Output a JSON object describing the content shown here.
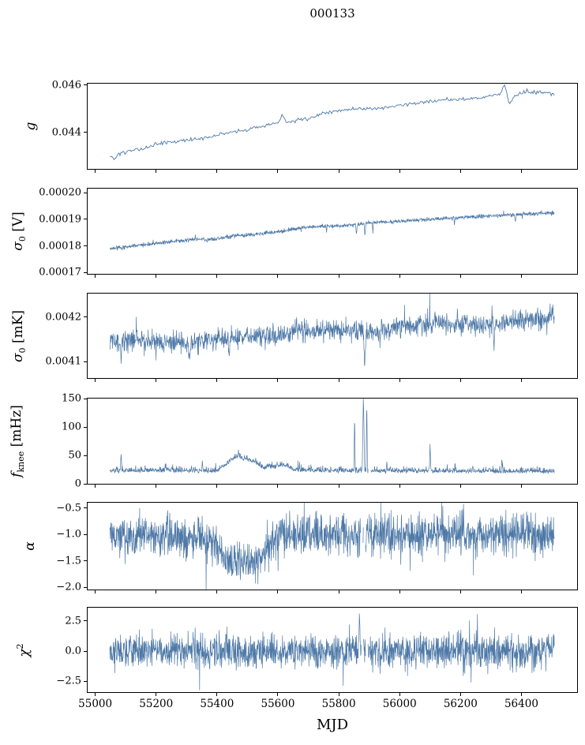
{
  "title": "000133",
  "xlabel": "MJD",
  "line_color": "#4e79a7",
  "spine_color": "#000000",
  "chart_data": {
    "type": "line",
    "title": "000133",
    "xlabel": "MJD",
    "legend": "none",
    "grid": false,
    "xlim": [
      54975,
      56583
    ],
    "xticks": [
      55000,
      55200,
      55400,
      55600,
      55800,
      56000,
      56200,
      56400
    ],
    "xtick_labels": [
      "55000",
      "55200",
      "55400",
      "55600",
      "55800",
      "56000",
      "56200",
      "56400"
    ],
    "x_data_range": [
      55048,
      56508
    ],
    "panels": [
      {
        "name": "g",
        "ylabel": "g",
        "ylabel_parts": {
          "base": "g",
          "sub": "",
          "sup": "",
          "suffix": ""
        },
        "ylim": [
          0.04245,
          0.04605
        ],
        "yticks": [
          0.046,
          0.044
        ],
        "ytick_labels": [
          "0.046",
          "0.044"
        ],
        "series": {
          "n": 440,
          "seed": 7,
          "noise_amp": 6.5e-05,
          "trend": [
            [
              55048,
              0.043
            ],
            [
              55065,
              0.04285
            ],
            [
              55080,
              0.0431
            ],
            [
              55120,
              0.0432
            ],
            [
              55160,
              0.0433
            ],
            [
              55200,
              0.0435
            ],
            [
              55260,
              0.0436
            ],
            [
              55320,
              0.0437
            ],
            [
              55380,
              0.0438
            ],
            [
              55440,
              0.044
            ],
            [
              55500,
              0.0441
            ],
            [
              55560,
              0.0443
            ],
            [
              55600,
              0.0444
            ],
            [
              55615,
              0.0447
            ],
            [
              55630,
              0.0444
            ],
            [
              55660,
              0.0445
            ],
            [
              55700,
              0.0446
            ],
            [
              55750,
              0.0448
            ],
            [
              55800,
              0.0449
            ],
            [
              55860,
              0.045
            ],
            [
              55920,
              0.045
            ],
            [
              55980,
              0.0451
            ],
            [
              56040,
              0.0452
            ],
            [
              56100,
              0.0453
            ],
            [
              56160,
              0.0454
            ],
            [
              56220,
              0.0454
            ],
            [
              56280,
              0.0455
            ],
            [
              56330,
              0.0456
            ],
            [
              56345,
              0.046
            ],
            [
              56360,
              0.0452
            ],
            [
              56380,
              0.0456
            ],
            [
              56420,
              0.0457
            ],
            [
              56460,
              0.0457
            ],
            [
              56508,
              0.0456
            ]
          ],
          "spikes": [],
          "gaps": []
        }
      },
      {
        "name": "sigma0_V",
        "ylabel": "σ0 [V]",
        "ylabel_parts": {
          "base": "σ",
          "sub": "0",
          "sup": "",
          "suffix": " [V]"
        },
        "ylim": [
          0.0001695,
          0.0002015
        ],
        "yticks": [
          0.0002,
          0.00019,
          0.00018,
          0.00017
        ],
        "ytick_labels": [
          "0.00020",
          "0.00019",
          "0.00018",
          "0.00017"
        ],
        "series": {
          "n": 1500,
          "seed": 11,
          "noise_amp": 6.5e-07,
          "trend": [
            [
              55048,
              0.000179
            ],
            [
              55150,
              0.0001803
            ],
            [
              55250,
              0.0001816
            ],
            [
              55355,
              0.0001828
            ],
            [
              55365,
              0.0001822
            ],
            [
              55450,
              0.0001836
            ],
            [
              55550,
              0.0001846
            ],
            [
              55620,
              0.0001856
            ],
            [
              55680,
              0.0001869
            ],
            [
              55730,
              0.0001874
            ],
            [
              55820,
              0.0001876
            ],
            [
              55900,
              0.0001886
            ],
            [
              56000,
              0.0001892
            ],
            [
              56100,
              0.00019
            ],
            [
              56200,
              0.0001907
            ],
            [
              56300,
              0.0001913
            ],
            [
              56400,
              0.0001919
            ],
            [
              56508,
              0.0001924
            ]
          ],
          "spikes": [
            [
              55760,
              0.000185,
              2
            ],
            [
              55858,
              0.0001842,
              3
            ],
            [
              55886,
              0.0001836,
              3
            ],
            [
              55912,
              0.0001845,
              2
            ],
            [
              56180,
              0.0001875,
              2
            ],
            [
              56380,
              0.0001888,
              3
            ]
          ],
          "gaps": []
        }
      },
      {
        "name": "sigma0_mK",
        "ylabel": "σ0 [mK]",
        "ylabel_parts": {
          "base": "σ",
          "sub": "0",
          "sup": "",
          "suffix": " [mK]"
        },
        "ylim": [
          0.004063,
          0.004253
        ],
        "yticks": [
          0.0042,
          0.0041
        ],
        "ytick_labels": [
          "0.0042",
          "0.0041"
        ],
        "series": {
          "n": 1500,
          "seed": 23,
          "noise_amp": 2.1e-05,
          "trend": [
            [
              55048,
              0.004148
            ],
            [
              55200,
              0.004147
            ],
            [
              55300,
              0.004143
            ],
            [
              55400,
              0.00415
            ],
            [
              55500,
              0.004152
            ],
            [
              55600,
              0.00416
            ],
            [
              55650,
              0.004168
            ],
            [
              55800,
              0.004171
            ],
            [
              55900,
              0.004168
            ],
            [
              56000,
              0.004178
            ],
            [
              56100,
              0.004185
            ],
            [
              56200,
              0.004185
            ],
            [
              56300,
              0.004182
            ],
            [
              56400,
              0.004192
            ],
            [
              56508,
              0.004199
            ]
          ],
          "spikes": [
            [
              55085,
              0.004095,
              3
            ],
            [
              55310,
              0.004105,
              4
            ],
            [
              55440,
              0.004105,
              3
            ],
            [
              55885,
              0.004082,
              4
            ],
            [
              56310,
              0.00412,
              3
            ]
          ],
          "gaps": []
        }
      },
      {
        "name": "fknee",
        "ylabel": "fknee [mHz]",
        "ylabel_parts": {
          "base": "f",
          "sub": "knee",
          "sup": "",
          "suffix": " [mHz]"
        },
        "ylim": [
          0,
          150
        ],
        "yticks": [
          150,
          100,
          50,
          0
        ],
        "ytick_labels": [
          "150",
          "100",
          "50",
          "0"
        ],
        "series": {
          "n": 1500,
          "seed": 42,
          "noise_amp": 8,
          "mode": "positive",
          "trend": [
            [
              55048,
              20
            ],
            [
              55150,
              21
            ],
            [
              55400,
              20
            ],
            [
              55428,
              30
            ],
            [
              55462,
              46
            ],
            [
              55495,
              41
            ],
            [
              55530,
              34
            ],
            [
              55555,
              25
            ],
            [
              55585,
              27
            ],
            [
              55618,
              31
            ],
            [
              55645,
              24
            ],
            [
              55690,
              21
            ],
            [
              55900,
              20
            ],
            [
              56508,
              19
            ]
          ],
          "spikes": [
            [
              55085,
              52,
              3
            ],
            [
              55230,
              36,
              2
            ],
            [
              55352,
              42,
              2
            ],
            [
              55852,
              126,
              2.5
            ],
            [
              55881,
              158,
              4
            ],
            [
              55892,
              152,
              2.5
            ],
            [
              55958,
              42,
              2
            ],
            [
              56100,
              72,
              2.5
            ],
            [
              56182,
              38,
              2
            ],
            [
              56240,
              32,
              2
            ],
            [
              56336,
              46,
              2.5
            ]
          ],
          "gaps": [
            [
              55897,
              55906
            ]
          ]
        }
      },
      {
        "name": "alpha",
        "ylabel": "α",
        "ylabel_parts": {
          "base": "α",
          "sub": "",
          "sup": "",
          "suffix": ""
        },
        "ylim": [
          -2.04,
          -0.4
        ],
        "yticks": [
          -0.5,
          -1.0,
          -1.5,
          -2.0
        ],
        "ytick_labels": [
          "−0.5",
          "−1.0",
          "−1.5",
          "−2.0"
        ],
        "series": {
          "n": 1700,
          "seed": 5,
          "noise_amp": 0.33,
          "trend": [
            [
              55048,
              -1.0
            ],
            [
              55200,
              -1.0
            ],
            [
              55260,
              -1.05
            ],
            [
              55300,
              -1.13
            ],
            [
              55340,
              -1.05
            ],
            [
              55380,
              -1.1
            ],
            [
              55420,
              -1.38
            ],
            [
              55450,
              -1.5
            ],
            [
              55530,
              -1.52
            ],
            [
              55555,
              -1.35
            ],
            [
              55580,
              -1.15
            ],
            [
              55610,
              -1.03
            ],
            [
              55700,
              -1.0
            ],
            [
              56508,
              -1.0
            ]
          ],
          "spikes": [],
          "gaps": [
            [
              55872,
              55879
            ],
            [
              55881,
              55888
            ]
          ]
        }
      },
      {
        "name": "chi2",
        "ylabel": "χ2",
        "ylabel_parts": {
          "base": "χ",
          "sub": "",
          "sup": "2",
          "suffix": ""
        },
        "ylim": [
          -3.4,
          3.6
        ],
        "yticks": [
          2.5,
          0.0,
          -2.5
        ],
        "ytick_labels": [
          "2.5",
          "0.0",
          "−2.5"
        ],
        "series": {
          "n": 1700,
          "seed": 99,
          "noise_amp": 1.2,
          "trend": [
            [
              55048,
              0
            ],
            [
              56508,
              0
            ]
          ],
          "spikes": [
            [
              55868,
              3.4,
              3
            ]
          ],
          "gaps": [
            [
              55874,
              55881
            ],
            [
              55889,
              55896
            ]
          ]
        }
      }
    ]
  }
}
